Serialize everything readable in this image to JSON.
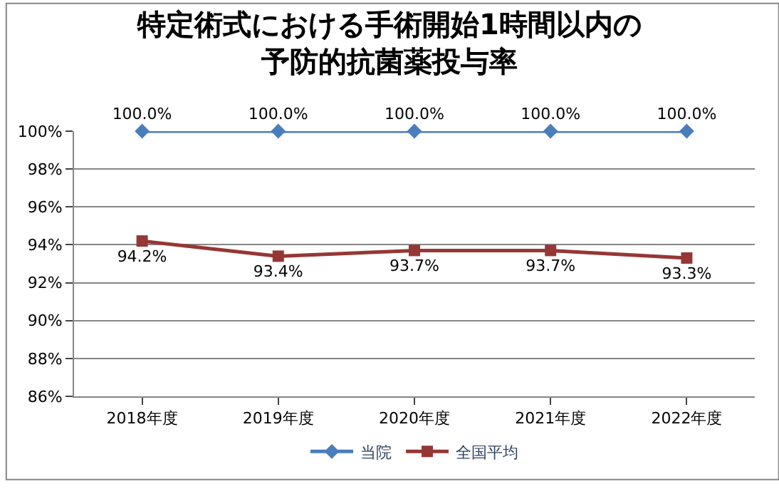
{
  "chart_data": {
    "type": "line",
    "title": "特定術式における手術開始1時間以内の予防的抗菌薬投与率",
    "categories": [
      "2018年度",
      "2019年度",
      "2020年度",
      "2021年度",
      "2022年度"
    ],
    "series": [
      {
        "name": "当院",
        "color": "#4a7ebb",
        "marker": "diamond",
        "values": [
          100.0,
          100.0,
          100.0,
          100.0,
          100.0
        ],
        "value_labels": [
          "100.0%",
          "100.0%",
          "100.0%",
          "100.0%",
          "100.0%"
        ]
      },
      {
        "name": "全国平均",
        "color": "#953735",
        "marker": "square",
        "values": [
          94.2,
          93.4,
          93.7,
          93.7,
          93.3
        ],
        "value_labels": [
          "94.2%",
          "93.4%",
          "93.7%",
          "93.7%",
          "93.3%"
        ]
      }
    ],
    "ylim": [
      86,
      100
    ],
    "yticks": [
      {
        "value": 86,
        "label": "86%"
      },
      {
        "value": 88,
        "label": "88%"
      },
      {
        "value": 90,
        "label": "90%"
      },
      {
        "value": 92,
        "label": "92%"
      },
      {
        "value": 94,
        "label": "94%"
      },
      {
        "value": 96,
        "label": "96%"
      },
      {
        "value": 98,
        "label": "98%"
      },
      {
        "value": 100,
        "label": "100%"
      }
    ],
    "grid": "y",
    "legend": "bottom",
    "line_style": "solid"
  }
}
